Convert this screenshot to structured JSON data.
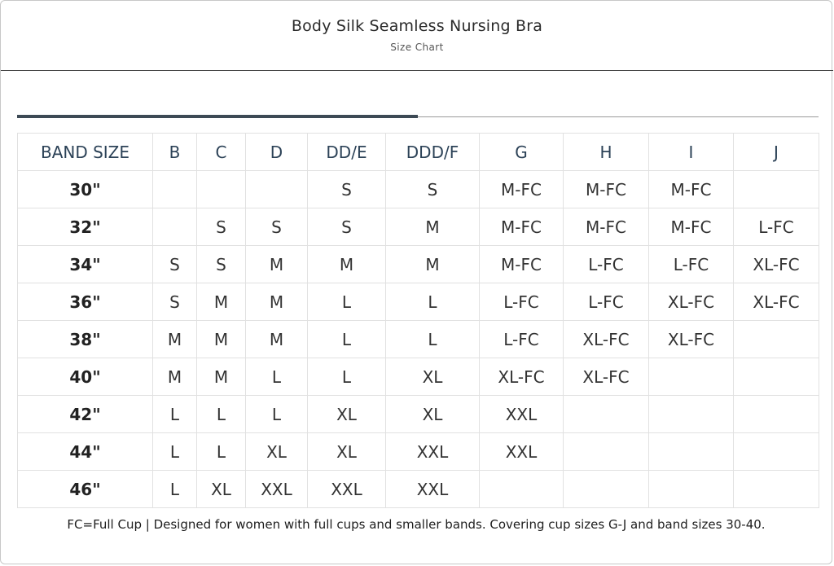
{
  "modal": {
    "title": "Body Silk Seamless Nursing Bra",
    "subtitle": "Size Chart"
  },
  "size_table": {
    "headers": [
      "BAND SIZE",
      "B",
      "C",
      "D",
      "DD/E",
      "DDD/F",
      "G",
      "H",
      "I",
      "J"
    ],
    "rows": [
      [
        "30\"",
        "",
        "",
        "",
        "S",
        "S",
        "M-FC",
        "M-FC",
        "M-FC",
        ""
      ],
      [
        "32\"",
        "",
        "S",
        "S",
        "S",
        "M",
        "M-FC",
        "M-FC",
        "M-FC",
        "L-FC"
      ],
      [
        "34\"",
        "S",
        "S",
        "M",
        "M",
        "M",
        "M-FC",
        "L-FC",
        "L-FC",
        "XL-FC"
      ],
      [
        "36\"",
        "S",
        "M",
        "M",
        "L",
        "L",
        "L-FC",
        "L-FC",
        "XL-FC",
        "XL-FC"
      ],
      [
        "38\"",
        "M",
        "M",
        "M",
        "L",
        "L",
        "L-FC",
        "XL-FC",
        "XL-FC",
        ""
      ],
      [
        "40\"",
        "M",
        "M",
        "L",
        "L",
        "XL",
        "XL-FC",
        "XL-FC",
        "",
        ""
      ],
      [
        "42\"",
        "L",
        "L",
        "L",
        "XL",
        "XL",
        "XXL",
        "",
        "",
        ""
      ],
      [
        "44\"",
        "L",
        "L",
        "XL",
        "XL",
        "XXL",
        "XXL",
        "",
        "",
        ""
      ],
      [
        "46\"",
        "L",
        "XL",
        "XXL",
        "XXL",
        "XXL",
        "",
        "",
        "",
        ""
      ]
    ]
  },
  "footnote": "FC=Full Cup | Designed for women with full cups and smaller bands. Covering cup sizes G-J and band sizes 30-40.",
  "colors": {
    "header_text": "#2c4257",
    "active_tab_bar": "#3d4a55",
    "grid_line": "#e1e1e1"
  }
}
